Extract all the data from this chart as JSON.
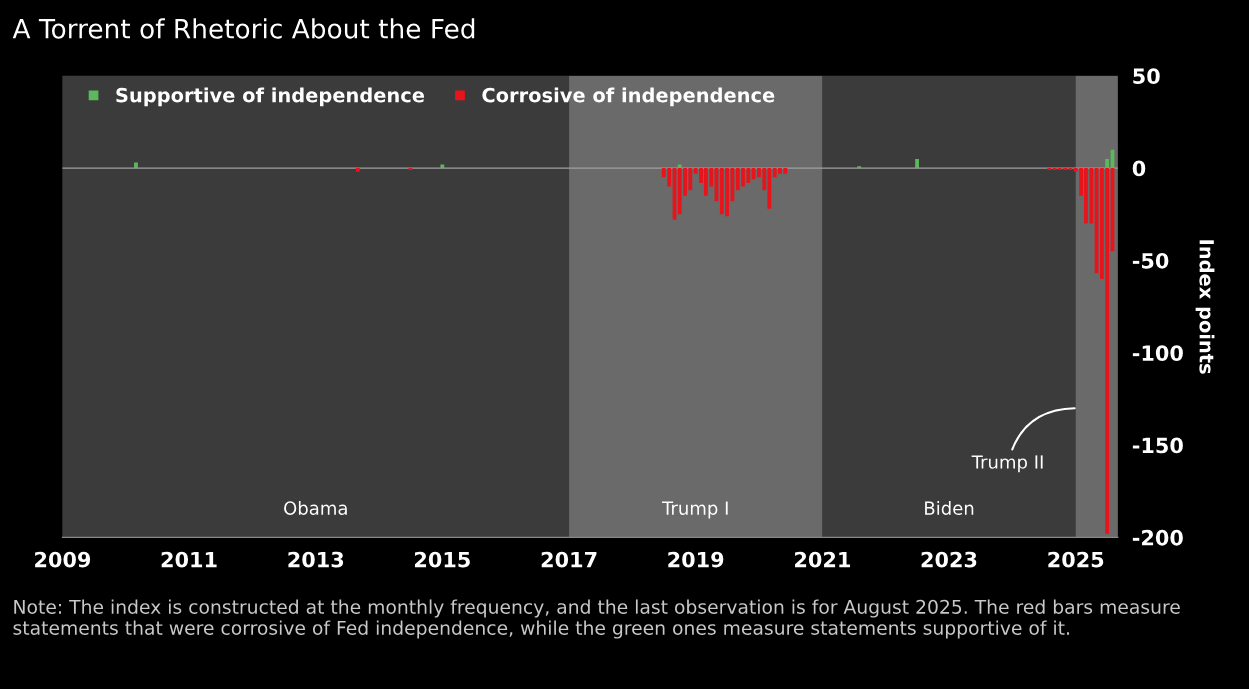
{
  "chart_data": {
    "type": "bar",
    "title": "A Torrent of Rhetoric About the Fed",
    "ylabel": "Index points",
    "series": [
      {
        "name": "Supportive of independence",
        "color": "#5cb85c",
        "x": [
          "2010-03",
          "2015-01",
          "2018-10",
          "2021-08",
          "2022-07",
          "2025-07",
          "2025-08"
        ],
        "values": [
          3,
          2,
          2,
          1,
          5,
          5,
          10
        ]
      },
      {
        "name": "Corrosive of independence",
        "color": "#e8141b",
        "x": [
          "2013-09",
          "2014-07",
          "2018-07",
          "2018-08",
          "2018-09",
          "2018-10",
          "2018-11",
          "2018-12",
          "2019-01",
          "2019-02",
          "2019-03",
          "2019-04",
          "2019-05",
          "2019-06",
          "2019-07",
          "2019-08",
          "2019-09",
          "2019-10",
          "2019-11",
          "2019-12",
          "2020-01",
          "2020-02",
          "2020-03",
          "2020-04",
          "2020-05",
          "2020-06",
          "2024-08",
          "2024-09",
          "2024-10",
          "2024-11",
          "2024-12",
          "2025-01",
          "2025-02",
          "2025-03",
          "2025-04",
          "2025-05",
          "2025-06",
          "2025-07",
          "2025-08"
        ],
        "values": [
          -2,
          -1,
          -5,
          -10,
          -28,
          -25,
          -15,
          -12,
          -3,
          -8,
          -15,
          -10,
          -18,
          -25,
          -26,
          -18,
          -12,
          -10,
          -8,
          -6,
          -5,
          -12,
          -22,
          -5,
          -3,
          -3,
          -1,
          -1,
          -1,
          -1,
          -1,
          -2,
          -15,
          -30,
          -30,
          -57,
          -60,
          -198,
          -45
        ]
      }
    ],
    "xlim": [
      "2009-01",
      "2025-09"
    ],
    "xticks": [
      {
        "value": "2009",
        "label": "2009"
      },
      {
        "value": "2011",
        "label": "2011"
      },
      {
        "value": "2013",
        "label": "2013"
      },
      {
        "value": "2015",
        "label": "2015"
      },
      {
        "value": "2017",
        "label": "2017"
      },
      {
        "value": "2019",
        "label": "2019"
      },
      {
        "value": "2021",
        "label": "2021"
      },
      {
        "value": "2023",
        "label": "2023"
      },
      {
        "value": "2025",
        "label": "2025"
      }
    ],
    "ylim": [
      -200,
      50
    ],
    "yticks": [
      -200,
      -150,
      -100,
      -50,
      0,
      50
    ],
    "bands": [
      {
        "axis": "x",
        "from": "2009-01",
        "to": "2017-01",
        "label": "Obama",
        "color": "#3b3b3b"
      },
      {
        "axis": "x",
        "from": "2017-01",
        "to": "2021-01",
        "label": "Trump I",
        "color": "#6a6a6a"
      },
      {
        "axis": "x",
        "from": "2021-01",
        "to": "2025-01",
        "label": "Biden",
        "color": "#3b3b3b"
      },
      {
        "axis": "x",
        "from": "2025-01",
        "to": "2025-09",
        "label": "Trump II",
        "color": "#6a6a6a"
      }
    ],
    "ref_lines": [
      {
        "axis": "y",
        "value": 0,
        "color": "#a0a0a0"
      }
    ],
    "annotations": [
      "Note: The index is constructed at the monthly frequency, and the last observation is for August 2025. The red bars measure statements that were corrosive of Fed independence, while the green ones measure statements supportive of it."
    ],
    "legend": "top left",
    "grid": false
  }
}
